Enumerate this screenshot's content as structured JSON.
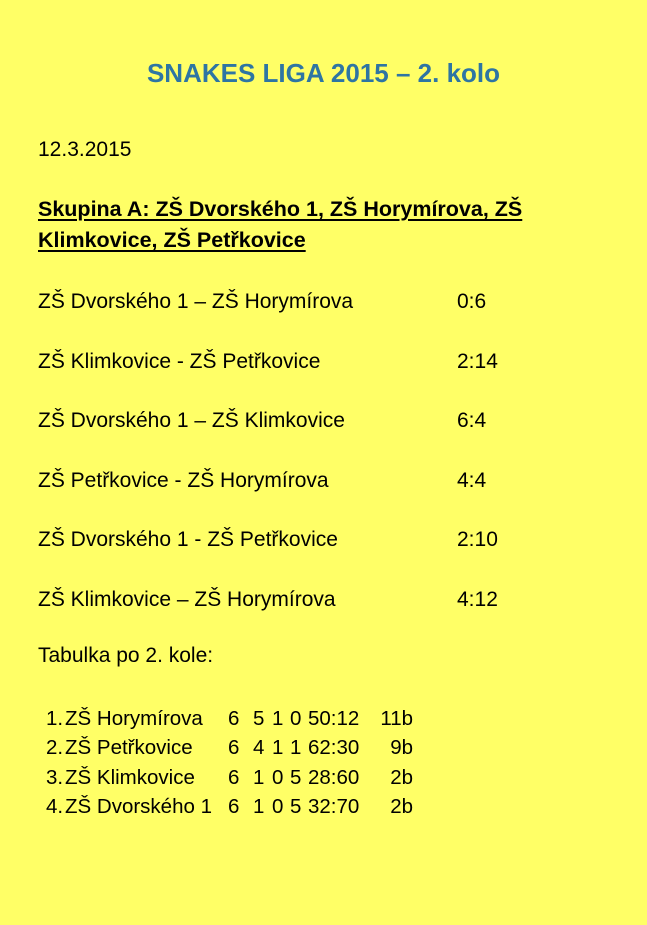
{
  "page": {
    "background_color": "#FFFF66",
    "title": "SNAKES LIGA 2015 – 2. kolo",
    "title_color": "#2E75A3",
    "date": "12.3.2015"
  },
  "group_heading": {
    "lines": [
      "Skupina A: ZŠ Dvorského 1, ZŠ Horymírova, ZŠ",
      "Klimkovice, ZŠ Petřkovice"
    ]
  },
  "matches": [
    {
      "teams": "ZŠ Dvorského 1 – ZŠ Horymírova",
      "score": "0:6"
    },
    {
      "teams": "ZŠ Klimkovice - ZŠ Petřkovice",
      "score": "2:14"
    },
    {
      "teams": "ZŠ Dvorského 1 – ZŠ Klimkovice",
      "score": "6:4"
    },
    {
      "teams": "ZŠ Petřkovice - ZŠ Horymírova",
      "score": "4:4"
    },
    {
      "teams": "ZŠ Dvorského 1 - ZŠ Petřkovice",
      "score": "2:10"
    },
    {
      "teams": "ZŠ Klimkovice – ZŠ Horymírova",
      "score": "4:12"
    }
  ],
  "standings": {
    "heading": "Tabulka po 2. kole:",
    "rows": [
      {
        "rank": "1.",
        "team": "ZŠ Horymírova",
        "games": "6",
        "wins": "5",
        "draws": "1",
        "losses": "0",
        "score": "50:12",
        "points": "11b"
      },
      {
        "rank": "2.",
        "team": "ZŠ Petřkovice",
        "games": "6",
        "wins": "4",
        "draws": "1",
        "losses": "1",
        "score": "62:30",
        "points": "9b"
      },
      {
        "rank": "3.",
        "team": "ZŠ Klimkovice",
        "games": "6",
        "wins": "1",
        "draws": "0",
        "losses": "5",
        "score": "28:60",
        "points": "2b"
      },
      {
        "rank": "4.",
        "team": "ZŠ Dvorského 1",
        "games": "6",
        "wins": "1",
        "draws": "0",
        "losses": "5",
        "score": "32:70",
        "points": "2b"
      }
    ]
  }
}
